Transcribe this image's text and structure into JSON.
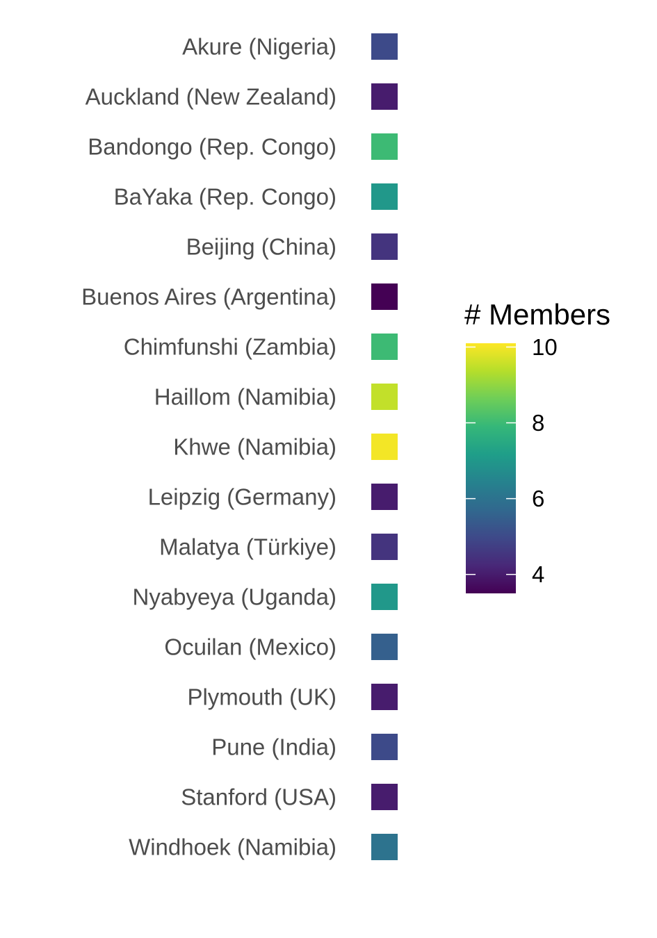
{
  "chart_data": {
    "type": "heatmap",
    "categories": [
      "Akure (Nigeria)",
      "Auckland (New Zealand)",
      "Bandongo (Rep. Congo)",
      "BaYaka (Rep. Congo)",
      "Beijing (China)",
      "Buenos Aires (Argentina)",
      "Chimfunshi (Zambia)",
      "Haillom (Namibia)",
      "Khwe (Namibia)",
      "Leipzig (Germany)",
      "Malatya (Türkiye)",
      "Nyabyeya (Uganda)",
      "Ocuilan (Mexico)",
      "Plymouth (UK)",
      "Pune (India)",
      "Stanford (USA)",
      "Windhoek (Namibia)"
    ],
    "values": [
      5,
      4,
      8,
      7,
      4.5,
      3.5,
      8,
      9.5,
      10,
      4,
      4.5,
      7,
      5.5,
      4,
      5,
      4,
      6
    ],
    "legend": {
      "title": "# Members",
      "ticks": [
        4,
        6,
        8,
        10
      ],
      "range": [
        3.5,
        10.1
      ],
      "placement": "right"
    },
    "colors": [
      "#440154",
      "#482878",
      "#3e4989",
      "#31688e",
      "#26828e",
      "#1f9e89",
      "#35b779",
      "#6ece58",
      "#b5de2b",
      "#fde725"
    ],
    "grid": false
  }
}
